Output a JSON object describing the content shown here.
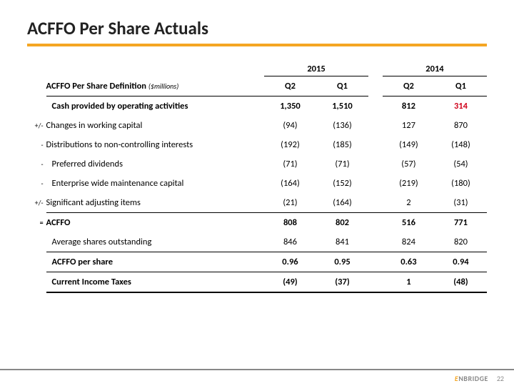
{
  "title": "ACFFO Per Share Actuals",
  "years": [
    "2015",
    "2014"
  ],
  "quarters": [
    "Q2",
    "Q1",
    "Q2",
    "Q1"
  ],
  "definition_header": "ACFFO Per Share Definition",
  "definition_sub": "($millions)",
  "colors": {
    "accent": "#f5a623",
    "negative_highlight": "#d0021b",
    "text": "#000000",
    "footer_rule": "#888888"
  },
  "rows": [
    {
      "prefix": "",
      "label": "Cash provided by operating activities",
      "vals": [
        "1,350",
        "1,510",
        "812",
        "314"
      ],
      "bold": true,
      "indent": 1,
      "underline": false,
      "red_idx": 3
    },
    {
      "prefix": "+/-",
      "label": "Changes in working capital",
      "vals": [
        "(94)",
        "(136)",
        "127",
        "870"
      ],
      "bold": false,
      "indent": 0,
      "underline": false
    },
    {
      "prefix": "-",
      "label": "Distributions to non-controlling interests",
      "vals": [
        "(192)",
        "(185)",
        "(149)",
        "(148)"
      ],
      "bold": false,
      "indent": 0,
      "underline": false
    },
    {
      "prefix": "-",
      "label": "Preferred dividends",
      "vals": [
        "(71)",
        "(71)",
        "(57)",
        "(54)"
      ],
      "bold": false,
      "indent": 1,
      "underline": false
    },
    {
      "prefix": "-",
      "label": "Enterprise wide maintenance capital",
      "vals": [
        "(164)",
        "(152)",
        "(219)",
        "(180)"
      ],
      "bold": false,
      "indent": 1,
      "underline": false
    },
    {
      "prefix": "+/-",
      "label": "Significant adjusting items",
      "vals": [
        "(21)",
        "(164)",
        "2",
        "(31)"
      ],
      "bold": false,
      "indent": 0,
      "underline": true
    },
    {
      "prefix": "=",
      "label": "ACFFO",
      "vals": [
        "808",
        "802",
        "516",
        "771"
      ],
      "bold": true,
      "indent": 0,
      "underline": false
    },
    {
      "prefix": "",
      "label": "Average shares outstanding",
      "vals": [
        "846",
        "841",
        "824",
        "820"
      ],
      "bold": false,
      "indent": 1,
      "underline": true
    },
    {
      "prefix": "",
      "label": "ACFFO per share",
      "vals": [
        "0.96",
        "0.95",
        "0.63",
        "0.94"
      ],
      "bold": true,
      "indent": 1,
      "underline": true
    },
    {
      "prefix": "",
      "label": "Current Income Taxes",
      "vals": [
        "(49)",
        "(37)",
        "1",
        "(48)"
      ],
      "bold": true,
      "indent": 1,
      "underline": "heavy"
    }
  ],
  "footer": {
    "logo": "ENBRIDGE",
    "page": "22"
  }
}
